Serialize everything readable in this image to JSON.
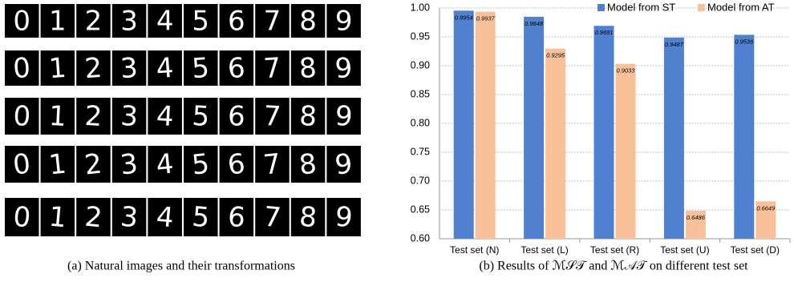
{
  "images": {
    "rows": [
      [
        "0",
        "1",
        "2",
        "3",
        "4",
        "5",
        "6",
        "7",
        "8",
        "9"
      ],
      [
        "0",
        "1",
        "2",
        "3",
        "4",
        "5",
        "6",
        "7",
        "8",
        "9"
      ],
      [
        "0",
        "1",
        "2",
        "3",
        "4",
        "5",
        "6",
        "7",
        "8",
        "9"
      ],
      [
        "0",
        "1",
        "2",
        "3",
        "4",
        "5",
        "6",
        "7",
        "8",
        "9"
      ],
      [
        "0",
        "1",
        "2",
        "3",
        "4",
        "5",
        "6",
        "7",
        "8",
        "9"
      ]
    ],
    "caption": "(a)  Natural images and their transformations"
  },
  "chart_data": {
    "type": "bar",
    "categories": [
      "Test set (N)",
      "Test set (L)",
      "Test set (R)",
      "Test set (U)",
      "Test set (D)"
    ],
    "series": [
      {
        "name": "Model from ST",
        "color": "#4f81d0",
        "values": [
          0.9954,
          0.9848,
          0.9691,
          0.9487,
          0.9536
        ]
      },
      {
        "name": "Model from AT",
        "color": "#f9c19a",
        "values": [
          0.9937,
          0.9295,
          0.9033,
          0.6486,
          0.6649
        ]
      }
    ],
    "ylim": [
      0.6,
      1.0
    ],
    "yticks": [
      {
        "value": 0.6,
        "label": "0.60"
      },
      {
        "value": 0.65,
        "label": "0.65"
      },
      {
        "value": 0.7,
        "label": "0.70"
      },
      {
        "value": 0.75,
        "label": "0.75"
      },
      {
        "value": 0.8,
        "label": "0.80"
      },
      {
        "value": 0.85,
        "label": "0.85"
      },
      {
        "value": 0.9,
        "label": "0.90"
      },
      {
        "value": 0.95,
        "label": "0.95"
      },
      {
        "value": 1.0,
        "label": "1.00"
      }
    ],
    "grid": true,
    "legend": "top-right",
    "caption": "(b)  Results of ℳ𝒮𝒯 and ℳ𝒜𝒯 on different test set"
  }
}
